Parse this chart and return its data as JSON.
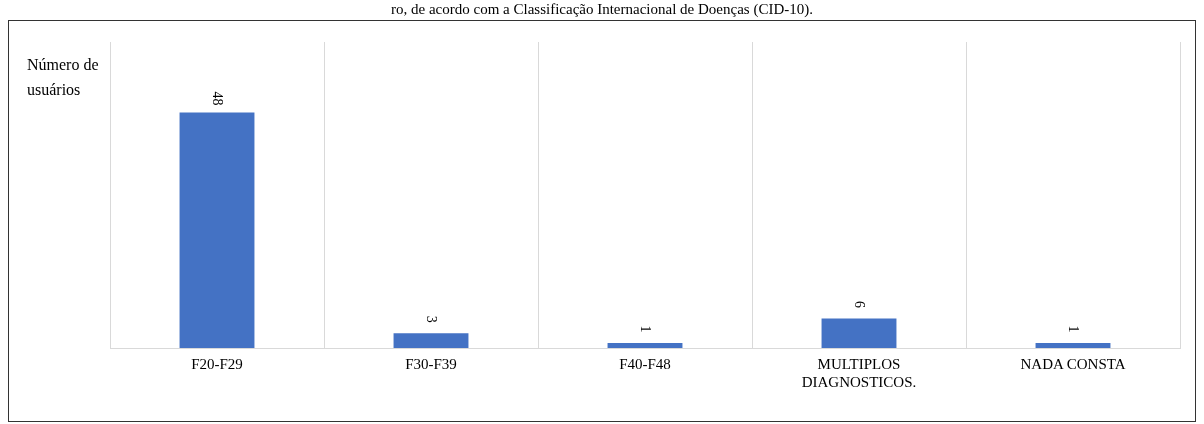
{
  "chart_data": {
    "type": "bar",
    "title": "ro, de acordo com a Classificação Internacional de Doenças (CID-10).",
    "ylabel": "Número de usuários",
    "categories": [
      "F20-F29",
      "F30-F39",
      "F40-F48",
      "MULTIPLOS DIAGNOSTICOS.",
      "NADA CONSTA"
    ],
    "values": [
      48,
      3,
      1,
      6,
      1
    ],
    "color": "#4472c4",
    "data_labels": true,
    "grid": "x",
    "legend": false
  }
}
